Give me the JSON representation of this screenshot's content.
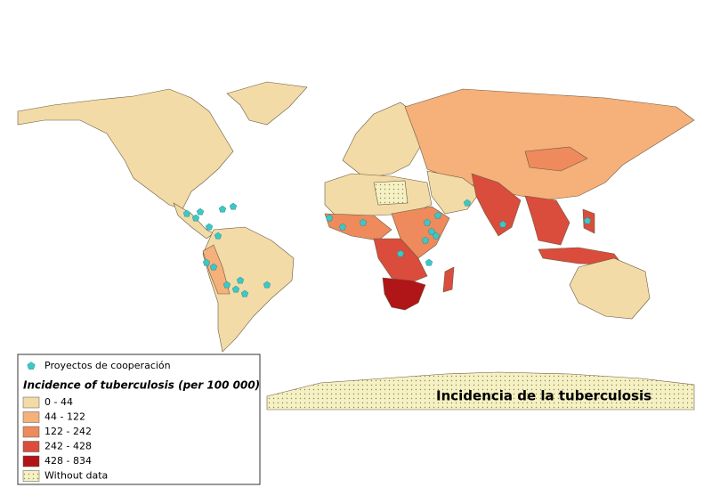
{
  "title": "Incidencia de la tuberculosis",
  "legend": {
    "points_label": "Proyectos de cooperación",
    "title": "Incidence of tuberculosis (per 100 000)",
    "classes": [
      {
        "label": "0 - 44",
        "color": "#f2dba6"
      },
      {
        "label": "44 - 122",
        "color": "#f6b07a"
      },
      {
        "label": "122 - 242",
        "color": "#ee8a5c"
      },
      {
        "label": "242 - 428",
        "color": "#da4c3c"
      },
      {
        "label": "428 - 834",
        "color": "#b01518"
      },
      {
        "label": "Without data",
        "color": "#f6f1c4"
      }
    ],
    "point_color": "#3cc8c8"
  }
}
